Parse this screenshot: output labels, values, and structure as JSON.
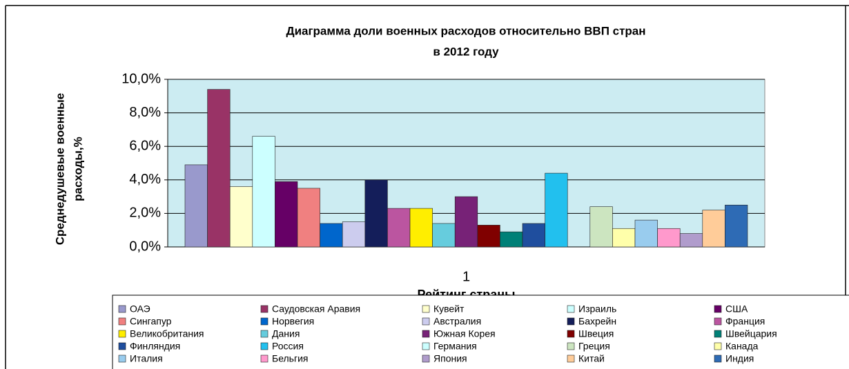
{
  "chart_data": {
    "type": "bar",
    "title": [
      "Диаграмма доли военных расходов относительно  ВВП стран",
      "в 2012 году"
    ],
    "ylabel": [
      "Среднедушевые военные",
      "расходы,%"
    ],
    "xlabel": "Рейтинг страны",
    "categories": [
      "1"
    ],
    "ylim": [
      0,
      10
    ],
    "yticks": [
      {
        "value": 0,
        "label": "0,0%"
      },
      {
        "value": 2,
        "label": "2,0%"
      },
      {
        "value": 4,
        "label": "4,0%"
      },
      {
        "value": 6,
        "label": "6,0%"
      },
      {
        "value": 8,
        "label": "8,0%"
      },
      {
        "value": 10,
        "label": "10,0%"
      }
    ],
    "grid": true,
    "series": [
      {
        "name": "ОАЭ",
        "color": "#9999cc",
        "values": [
          4.9
        ]
      },
      {
        "name": "Саудовская Аравия",
        "color": "#993366",
        "values": [
          9.4
        ]
      },
      {
        "name": "Кувейт",
        "color": "#ffffcc",
        "values": [
          3.6
        ]
      },
      {
        "name": "Израиль",
        "color": "#ccffff",
        "values": [
          6.6
        ]
      },
      {
        "name": "США",
        "color": "#660066",
        "values": [
          3.9
        ]
      },
      {
        "name": "Сингапур",
        "color": "#f08080",
        "values": [
          3.5
        ]
      },
      {
        "name": "Норвегия",
        "color": "#0066cc",
        "values": [
          1.4
        ]
      },
      {
        "name": "Австралия",
        "color": "#ccccee",
        "values": [
          1.5
        ]
      },
      {
        "name": "Бахрейн",
        "color": "#141e5a",
        "values": [
          4.0
        ]
      },
      {
        "name": "Франция",
        "color": "#bb55a0",
        "values": [
          2.3
        ]
      },
      {
        "name": "Великобритания",
        "color": "#ffee00",
        "values": [
          2.3
        ]
      },
      {
        "name": "Дания",
        "color": "#66ccdd",
        "values": [
          1.4
        ]
      },
      {
        "name": "Южная Корея",
        "color": "#772277",
        "values": [
          3.0
        ]
      },
      {
        "name": "Швеция",
        "color": "#800000",
        "values": [
          1.3
        ]
      },
      {
        "name": "Швейцария",
        "color": "#008077",
        "values": [
          0.9
        ]
      },
      {
        "name": "Финляндия",
        "color": "#1f4e9e",
        "values": [
          1.4
        ]
      },
      {
        "name": "Россия",
        "color": "#22c0ee",
        "values": [
          4.4
        ]
      },
      {
        "name": "Германия",
        "color": "#ccffff",
        "values": [
          null
        ]
      },
      {
        "name": "Греция",
        "color": "#cce5c0",
        "values": [
          2.4
        ]
      },
      {
        "name": "Канада",
        "color": "#ffffaa",
        "values": [
          1.1
        ]
      },
      {
        "name": "Италия",
        "color": "#99ccee",
        "values": [
          1.6
        ]
      },
      {
        "name": "Бельгия",
        "color": "#ff99cc",
        "values": [
          1.1
        ]
      },
      {
        "name": "Япония",
        "color": "#b09ccc",
        "values": [
          0.8
        ]
      },
      {
        "name": "Китай",
        "color": "#ffcc99",
        "values": [
          2.2
        ]
      },
      {
        "name": "Индия",
        "color": "#2e6bb5",
        "values": [
          2.5
        ]
      }
    ]
  }
}
